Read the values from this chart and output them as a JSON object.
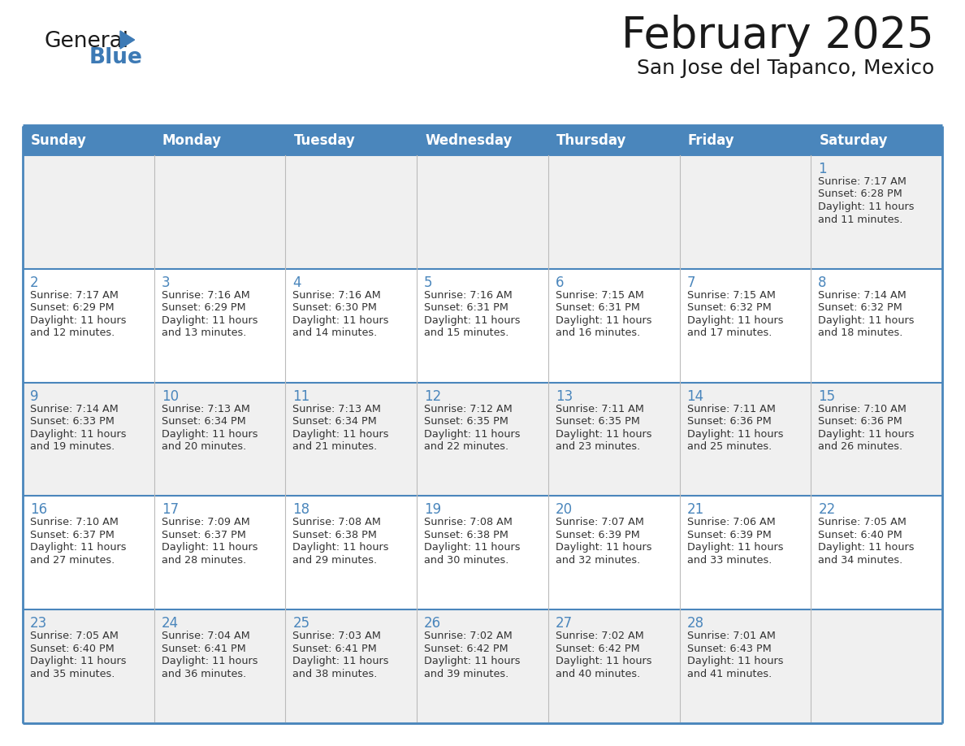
{
  "title": "February 2025",
  "subtitle": "San Jose del Tapanco, Mexico",
  "header_bg_color": "#4a86bc",
  "header_text_color": "#ffffff",
  "days_of_week": [
    "Sunday",
    "Monday",
    "Tuesday",
    "Wednesday",
    "Thursday",
    "Friday",
    "Saturday"
  ],
  "row_odd_bg": "#f0f0f0",
  "row_even_bg": "#ffffff",
  "border_color": "#4a86bc",
  "day_num_color": "#4a86bc",
  "text_color": "#333333",
  "calendar": [
    [
      null,
      null,
      null,
      null,
      null,
      null,
      {
        "day": 1,
        "sunrise": "7:17 AM",
        "sunset": "6:28 PM",
        "daylight_h": "11 hours",
        "daylight_m": "and 11 minutes."
      }
    ],
    [
      {
        "day": 2,
        "sunrise": "7:17 AM",
        "sunset": "6:29 PM",
        "daylight_h": "11 hours",
        "daylight_m": "and 12 minutes."
      },
      {
        "day": 3,
        "sunrise": "7:16 AM",
        "sunset": "6:29 PM",
        "daylight_h": "11 hours",
        "daylight_m": "and 13 minutes."
      },
      {
        "day": 4,
        "sunrise": "7:16 AM",
        "sunset": "6:30 PM",
        "daylight_h": "11 hours",
        "daylight_m": "and 14 minutes."
      },
      {
        "day": 5,
        "sunrise": "7:16 AM",
        "sunset": "6:31 PM",
        "daylight_h": "11 hours",
        "daylight_m": "and 15 minutes."
      },
      {
        "day": 6,
        "sunrise": "7:15 AM",
        "sunset": "6:31 PM",
        "daylight_h": "11 hours",
        "daylight_m": "and 16 minutes."
      },
      {
        "day": 7,
        "sunrise": "7:15 AM",
        "sunset": "6:32 PM",
        "daylight_h": "11 hours",
        "daylight_m": "and 17 minutes."
      },
      {
        "day": 8,
        "sunrise": "7:14 AM",
        "sunset": "6:32 PM",
        "daylight_h": "11 hours",
        "daylight_m": "and 18 minutes."
      }
    ],
    [
      {
        "day": 9,
        "sunrise": "7:14 AM",
        "sunset": "6:33 PM",
        "daylight_h": "11 hours",
        "daylight_m": "and 19 minutes."
      },
      {
        "day": 10,
        "sunrise": "7:13 AM",
        "sunset": "6:34 PM",
        "daylight_h": "11 hours",
        "daylight_m": "and 20 minutes."
      },
      {
        "day": 11,
        "sunrise": "7:13 AM",
        "sunset": "6:34 PM",
        "daylight_h": "11 hours",
        "daylight_m": "and 21 minutes."
      },
      {
        "day": 12,
        "sunrise": "7:12 AM",
        "sunset": "6:35 PM",
        "daylight_h": "11 hours",
        "daylight_m": "and 22 minutes."
      },
      {
        "day": 13,
        "sunrise": "7:11 AM",
        "sunset": "6:35 PM",
        "daylight_h": "11 hours",
        "daylight_m": "and 23 minutes."
      },
      {
        "day": 14,
        "sunrise": "7:11 AM",
        "sunset": "6:36 PM",
        "daylight_h": "11 hours",
        "daylight_m": "and 25 minutes."
      },
      {
        "day": 15,
        "sunrise": "7:10 AM",
        "sunset": "6:36 PM",
        "daylight_h": "11 hours",
        "daylight_m": "and 26 minutes."
      }
    ],
    [
      {
        "day": 16,
        "sunrise": "7:10 AM",
        "sunset": "6:37 PM",
        "daylight_h": "11 hours",
        "daylight_m": "and 27 minutes."
      },
      {
        "day": 17,
        "sunrise": "7:09 AM",
        "sunset": "6:37 PM",
        "daylight_h": "11 hours",
        "daylight_m": "and 28 minutes."
      },
      {
        "day": 18,
        "sunrise": "7:08 AM",
        "sunset": "6:38 PM",
        "daylight_h": "11 hours",
        "daylight_m": "and 29 minutes."
      },
      {
        "day": 19,
        "sunrise": "7:08 AM",
        "sunset": "6:38 PM",
        "daylight_h": "11 hours",
        "daylight_m": "and 30 minutes."
      },
      {
        "day": 20,
        "sunrise": "7:07 AM",
        "sunset": "6:39 PM",
        "daylight_h": "11 hours",
        "daylight_m": "and 32 minutes."
      },
      {
        "day": 21,
        "sunrise": "7:06 AM",
        "sunset": "6:39 PM",
        "daylight_h": "11 hours",
        "daylight_m": "and 33 minutes."
      },
      {
        "day": 22,
        "sunrise": "7:05 AM",
        "sunset": "6:40 PM",
        "daylight_h": "11 hours",
        "daylight_m": "and 34 minutes."
      }
    ],
    [
      {
        "day": 23,
        "sunrise": "7:05 AM",
        "sunset": "6:40 PM",
        "daylight_h": "11 hours",
        "daylight_m": "and 35 minutes."
      },
      {
        "day": 24,
        "sunrise": "7:04 AM",
        "sunset": "6:41 PM",
        "daylight_h": "11 hours",
        "daylight_m": "and 36 minutes."
      },
      {
        "day": 25,
        "sunrise": "7:03 AM",
        "sunset": "6:41 PM",
        "daylight_h": "11 hours",
        "daylight_m": "and 38 minutes."
      },
      {
        "day": 26,
        "sunrise": "7:02 AM",
        "sunset": "6:42 PM",
        "daylight_h": "11 hours",
        "daylight_m": "and 39 minutes."
      },
      {
        "day": 27,
        "sunrise": "7:02 AM",
        "sunset": "6:42 PM",
        "daylight_h": "11 hours",
        "daylight_m": "and 40 minutes."
      },
      {
        "day": 28,
        "sunrise": "7:01 AM",
        "sunset": "6:43 PM",
        "daylight_h": "11 hours",
        "daylight_m": "and 41 minutes."
      },
      null
    ]
  ],
  "logo_color_general": "#1a1a1a",
  "logo_color_blue": "#3d7ab5",
  "logo_triangle_color": "#3d7ab5",
  "figwidth": 11.88,
  "figheight": 9.18,
  "dpi": 100
}
